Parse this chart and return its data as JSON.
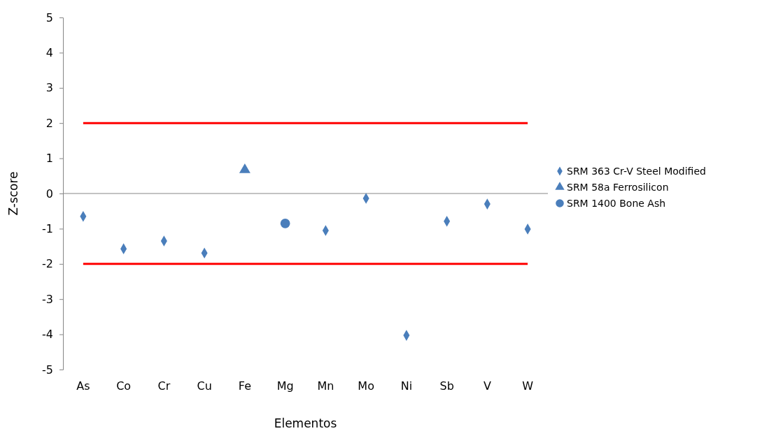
{
  "chart_data": {
    "type": "scatter",
    "xlabel": "Elementos",
    "ylabel": "Z-score",
    "categories": [
      "As",
      "Co",
      "Cr",
      "Cu",
      "Fe",
      "Mg",
      "Mn",
      "Mo",
      "Ni",
      "Sb",
      "V",
      "W"
    ],
    "ylim": [
      -5,
      5
    ],
    "yticks": [
      -5,
      -4,
      -3,
      -2,
      -1,
      0,
      1,
      2,
      3,
      4,
      5
    ],
    "legend": "right",
    "series": [
      {
        "type": "line",
        "color": "#ff0000",
        "marker": "none",
        "values": [
          2,
          2,
          2,
          2,
          2,
          2,
          2,
          2,
          2,
          2,
          2,
          2
        ]
      },
      {
        "type": "line",
        "color": "#ff0000",
        "marker": "none",
        "values": [
          -2,
          -2,
          -2,
          -2,
          -2,
          -2,
          -2,
          -2,
          -2,
          -2,
          -2,
          -2
        ]
      },
      {
        "name": "SRM 363 Cr-V Steel Modified",
        "color": "#4a7ebb",
        "marker": "diamond",
        "values": [
          -0.65,
          -1.57,
          -1.35,
          -1.69,
          null,
          null,
          -1.05,
          -0.14,
          -4.03,
          -0.79,
          -0.3,
          -1.01
        ]
      },
      {
        "name": "SRM 58a Ferrosilicon",
        "color": "#4a7ebb",
        "marker": "triangle",
        "values": [
          null,
          null,
          null,
          null,
          0.67,
          null,
          null,
          null,
          null,
          null,
          null,
          null
        ]
      },
      {
        "name": "SRM 1400 Bone Ash",
        "color": "#4a7ebb",
        "marker": "circle",
        "values": [
          null,
          null,
          null,
          null,
          null,
          -0.85,
          null,
          null,
          null,
          null,
          null,
          null
        ]
      }
    ]
  }
}
